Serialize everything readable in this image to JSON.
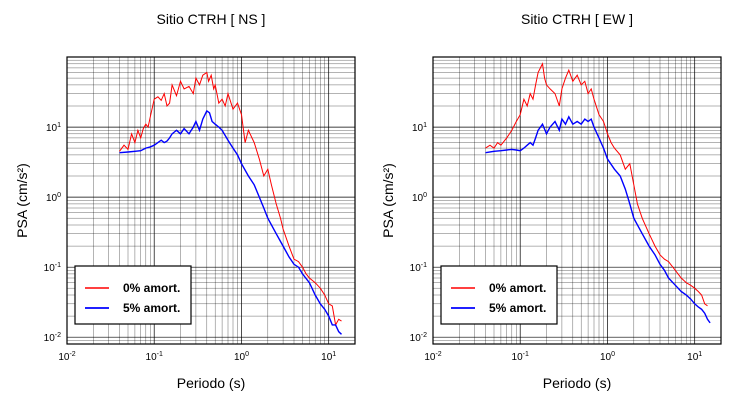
{
  "chart_data": [
    {
      "type": "line",
      "title": "Sitio CTRH [ NS ]",
      "xlabel": "Periodo (s)",
      "ylabel": "PSA (cm/s²)",
      "x_scale": "log",
      "y_scale": "log",
      "xlim": [
        0.01,
        20
      ],
      "ylim": [
        0.008,
        100
      ],
      "grid": true,
      "xticks": [
        {
          "base": "10",
          "exp": "-2"
        },
        {
          "base": "10",
          "exp": "-1"
        },
        {
          "base": "10",
          "exp": "0"
        },
        {
          "base": "10",
          "exp": "1"
        }
      ],
      "yticks": [
        {
          "base": "10",
          "exp": "-2"
        },
        {
          "base": "10",
          "exp": "-1"
        },
        {
          "base": "10",
          "exp": "0"
        },
        {
          "base": "10",
          "exp": "1"
        }
      ],
      "legend_position": "bottom-left",
      "series": [
        {
          "name": "0% amort.",
          "color": "#ff0000",
          "x": [
            0.04,
            0.045,
            0.05,
            0.055,
            0.06,
            0.065,
            0.07,
            0.075,
            0.08,
            0.085,
            0.09,
            0.1,
            0.11,
            0.12,
            0.13,
            0.14,
            0.15,
            0.16,
            0.18,
            0.2,
            0.22,
            0.25,
            0.28,
            0.3,
            0.33,
            0.36,
            0.4,
            0.42,
            0.45,
            0.48,
            0.5,
            0.55,
            0.6,
            0.65,
            0.7,
            0.8,
            0.9,
            1.0,
            1.1,
            1.2,
            1.4,
            1.6,
            1.8,
            2.0,
            2.2,
            2.5,
            2.8,
            3.0,
            3.5,
            4.0,
            4.5,
            5.0,
            5.5,
            6.0,
            7.0,
            8.0,
            9.0,
            10.0,
            11.0,
            12.0,
            13.0,
            14.0
          ],
          "y": [
            4.5,
            5.5,
            4.8,
            8.0,
            6.0,
            9.0,
            7.0,
            9.5,
            11.0,
            10.0,
            14.0,
            25.0,
            27.0,
            24.0,
            30.0,
            20.0,
            22.0,
            40.0,
            28.0,
            45.0,
            35.0,
            38.0,
            30.0,
            50.0,
            40.0,
            55.0,
            60.0,
            45.0,
            55.0,
            35.0,
            40.0,
            22.0,
            25.0,
            20.0,
            30.0,
            18.0,
            22.0,
            15.0,
            6.0,
            9.0,
            6.0,
            3.5,
            2.0,
            2.5,
            1.5,
            0.8,
            0.5,
            0.35,
            0.2,
            0.13,
            0.12,
            0.1,
            0.08,
            0.07,
            0.06,
            0.05,
            0.04,
            0.03,
            0.028,
            0.015,
            0.018,
            0.017
          ]
        },
        {
          "name": "5% amort.",
          "color": "#0000ff",
          "x": [
            0.04,
            0.05,
            0.06,
            0.07,
            0.08,
            0.09,
            0.1,
            0.11,
            0.12,
            0.13,
            0.14,
            0.15,
            0.16,
            0.17,
            0.18,
            0.2,
            0.22,
            0.25,
            0.28,
            0.3,
            0.33,
            0.36,
            0.4,
            0.43,
            0.46,
            0.5,
            0.55,
            0.6,
            0.7,
            0.8,
            0.9,
            1.0,
            1.2,
            1.4,
            1.6,
            1.8,
            2.0,
            2.5,
            3.0,
            3.5,
            4.0,
            4.5,
            5.0,
            6.0,
            7.0,
            8.0,
            9.0,
            10.0,
            11.0,
            12.0,
            13.0,
            14.0
          ],
          "y": [
            4.3,
            4.4,
            4.5,
            4.6,
            5.0,
            5.2,
            5.5,
            6.0,
            6.5,
            6.0,
            6.3,
            7.0,
            8.0,
            8.5,
            9.0,
            8.0,
            9.5,
            8.0,
            10.0,
            12.0,
            9.0,
            13.0,
            17.0,
            16.0,
            12.0,
            11.0,
            10.0,
            9.0,
            6.5,
            5.0,
            4.0,
            3.0,
            2.0,
            1.5,
            1.0,
            0.7,
            0.5,
            0.3,
            0.2,
            0.14,
            0.11,
            0.1,
            0.08,
            0.06,
            0.04,
            0.03,
            0.025,
            0.02,
            0.015,
            0.015,
            0.012,
            0.011
          ]
        }
      ]
    },
    {
      "type": "line",
      "title": "Sitio CTRH [ EW ]",
      "xlabel": "Periodo (s)",
      "ylabel": "PSA (cm/s²)",
      "x_scale": "log",
      "y_scale": "log",
      "xlim": [
        0.01,
        20
      ],
      "ylim": [
        0.008,
        100
      ],
      "grid": true,
      "xticks": [
        {
          "base": "10",
          "exp": "-2"
        },
        {
          "base": "10",
          "exp": "-1"
        },
        {
          "base": "10",
          "exp": "0"
        },
        {
          "base": "10",
          "exp": "1"
        }
      ],
      "yticks": [
        {
          "base": "10",
          "exp": "-2"
        },
        {
          "base": "10",
          "exp": "-1"
        },
        {
          "base": "10",
          "exp": "0"
        },
        {
          "base": "10",
          "exp": "1"
        }
      ],
      "legend_position": "bottom-left",
      "series": [
        {
          "name": "0% amort.",
          "color": "#ff0000",
          "x": [
            0.04,
            0.045,
            0.05,
            0.055,
            0.06,
            0.07,
            0.08,
            0.09,
            0.1,
            0.11,
            0.12,
            0.13,
            0.14,
            0.15,
            0.16,
            0.17,
            0.18,
            0.19,
            0.2,
            0.22,
            0.25,
            0.28,
            0.3,
            0.33,
            0.36,
            0.4,
            0.45,
            0.5,
            0.55,
            0.6,
            0.65,
            0.7,
            0.8,
            0.9,
            1.0,
            1.1,
            1.2,
            1.4,
            1.6,
            1.8,
            2.0,
            2.2,
            2.5,
            3.0,
            3.5,
            4.0,
            4.5,
            5.0,
            6.0,
            7.0,
            8.0,
            9.0,
            10.0,
            11.0,
            12.0,
            13.0,
            14.0
          ],
          "y": [
            5.0,
            5.5,
            5.0,
            6.0,
            5.5,
            7.0,
            9.0,
            12.0,
            15.0,
            25.0,
            20.0,
            30.0,
            25.0,
            40.0,
            60.0,
            70.0,
            80.0,
            50.0,
            40.0,
            35.0,
            30.0,
            20.0,
            35.0,
            50.0,
            65.0,
            45.0,
            55.0,
            40.0,
            45.0,
            30.0,
            35.0,
            25.0,
            15.0,
            12.0,
            8.0,
            6.0,
            5.0,
            4.0,
            2.5,
            3.0,
            1.5,
            0.8,
            0.5,
            0.3,
            0.2,
            0.15,
            0.13,
            0.12,
            0.09,
            0.07,
            0.06,
            0.055,
            0.05,
            0.045,
            0.04,
            0.03,
            0.028
          ]
        },
        {
          "name": "5% amort.",
          "color": "#0000ff",
          "x": [
            0.04,
            0.05,
            0.06,
            0.07,
            0.08,
            0.09,
            0.1,
            0.11,
            0.12,
            0.13,
            0.14,
            0.15,
            0.16,
            0.18,
            0.2,
            0.22,
            0.25,
            0.28,
            0.3,
            0.33,
            0.36,
            0.4,
            0.45,
            0.5,
            0.55,
            0.6,
            0.65,
            0.7,
            0.8,
            0.9,
            1.0,
            1.2,
            1.4,
            1.6,
            1.8,
            2.0,
            2.5,
            3.0,
            3.5,
            4.0,
            4.5,
            5.0,
            6.0,
            7.0,
            8.0,
            9.0,
            10.0,
            11.0,
            12.0,
            13.0,
            14.0,
            15.0
          ],
          "y": [
            4.3,
            4.5,
            4.6,
            4.7,
            4.8,
            4.7,
            4.6,
            5.0,
            5.5,
            6.0,
            5.5,
            7.0,
            9.0,
            11.0,
            8.0,
            10.0,
            12.0,
            9.0,
            13.0,
            11.0,
            14.0,
            11.0,
            12.0,
            11.0,
            13.0,
            12.0,
            13.0,
            10.0,
            7.0,
            5.0,
            3.5,
            2.5,
            2.0,
            1.3,
            0.8,
            0.5,
            0.3,
            0.2,
            0.15,
            0.11,
            0.09,
            0.07,
            0.055,
            0.045,
            0.04,
            0.035,
            0.03,
            0.027,
            0.025,
            0.022,
            0.018,
            0.016
          ]
        }
      ]
    }
  ]
}
